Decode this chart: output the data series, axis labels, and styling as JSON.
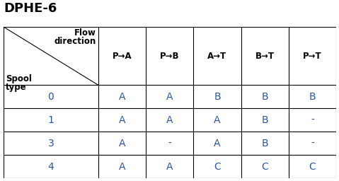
{
  "title": "DPHE-6",
  "title_fontsize": 13,
  "title_fontweight": "bold",
  "background_color": "#ffffff",
  "col_header_flow": "Flow",
  "col_header_direction": "direction",
  "row_header_spool": "Spool",
  "row_header_type": "type",
  "col_headers": [
    "P→A",
    "P→B",
    "A→T",
    "B→T",
    "P→T"
  ],
  "row_headers": [
    "0",
    "1",
    "3",
    "4"
  ],
  "table_data": [
    [
      "A",
      "A",
      "B",
      "B",
      "B"
    ],
    [
      "A",
      "A",
      "A",
      "B",
      "-"
    ],
    [
      "A",
      "-",
      "A",
      "B",
      "-"
    ],
    [
      "A",
      "A",
      "C",
      "C",
      "C"
    ]
  ],
  "header_fontsize": 8.5,
  "cell_fontsize": 10,
  "col_header_color": "#000000",
  "data_color": "#2855a0",
  "row_num_color": "#2855a0",
  "line_color": "#000000",
  "line_width": 0.8,
  "fig_w": 4.79,
  "fig_h": 2.56,
  "dpi": 100
}
